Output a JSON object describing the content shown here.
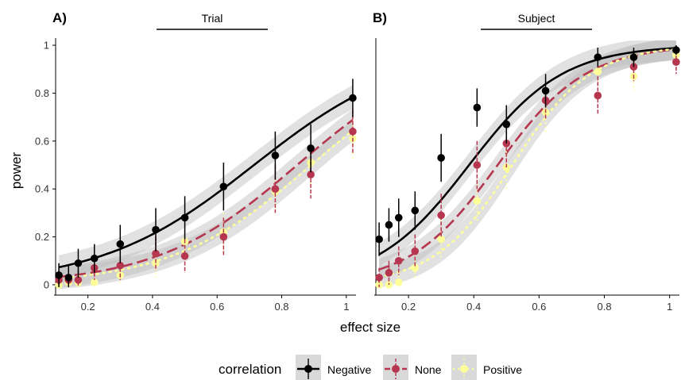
{
  "figure": {
    "ylabel": "power",
    "xlabel": "effect size",
    "legend_title": "correlation",
    "legend": [
      {
        "label": "Negative",
        "color": "#000000",
        "line": "solid"
      },
      {
        "label": "None",
        "color": "#b5364e",
        "line": "dashed"
      },
      {
        "label": "Positive",
        "color": "#ffff99",
        "line": "dotted"
      }
    ]
  },
  "chart_data": [
    {
      "type": "scatter",
      "panel_label": "A)",
      "facet": "Trial",
      "xlabel": "effect size",
      "ylabel": "power",
      "xlim": [
        0.1,
        1.03
      ],
      "ylim": [
        -0.03,
        1.03
      ],
      "xticks": [
        0.2,
        0.4,
        0.6,
        0.8,
        1.0
      ],
      "xtick_labels": [
        "0.2",
        "0.4",
        "0.6",
        "0.8",
        "1"
      ],
      "yticks": [
        0,
        0.2,
        0.4,
        0.6,
        0.8,
        1.0
      ],
      "ytick_labels": [
        "0",
        "0.2",
        "0.4",
        "0.6",
        "0.8",
        "1"
      ],
      "legend_title": "correlation",
      "series": [
        {
          "name": "Negative",
          "color": "#000000",
          "x": [
            0.11,
            0.14,
            0.17,
            0.22,
            0.3,
            0.41,
            0.5,
            0.62,
            0.78,
            0.89,
            1.02
          ],
          "y": [
            0.04,
            0.03,
            0.09,
            0.11,
            0.17,
            0.23,
            0.28,
            0.41,
            0.54,
            0.57,
            0.78
          ],
          "err": [
            0.05,
            0.05,
            0.06,
            0.06,
            0.08,
            0.09,
            0.09,
            0.1,
            0.1,
            0.1,
            0.08
          ],
          "fit": {
            "a": -3.0,
            "b": 4.2
          }
        },
        {
          "name": "None",
          "color": "#b5364e",
          "x": [
            0.11,
            0.14,
            0.17,
            0.22,
            0.3,
            0.41,
            0.5,
            0.62,
            0.78,
            0.89,
            1.02
          ],
          "y": [
            0.02,
            0.02,
            0.02,
            0.07,
            0.08,
            0.13,
            0.12,
            0.2,
            0.4,
            0.46,
            0.64
          ],
          "err": [
            0.04,
            0.04,
            0.04,
            0.05,
            0.06,
            0.07,
            0.07,
            0.08,
            0.1,
            0.1,
            0.09
          ],
          "fit": {
            "a": -3.9,
            "b": 4.6
          }
        },
        {
          "name": "Positive",
          "color": "#ffff99",
          "x": [
            0.11,
            0.14,
            0.17,
            0.22,
            0.3,
            0.41,
            0.5,
            0.62,
            0.78,
            0.89,
            1.02
          ],
          "y": [
            0.0,
            0.01,
            0.01,
            0.01,
            0.04,
            0.09,
            0.18,
            0.22,
            0.39,
            0.51,
            0.61
          ],
          "err": [
            0.02,
            0.02,
            0.02,
            0.03,
            0.04,
            0.06,
            0.07,
            0.08,
            0.1,
            0.1,
            0.09
          ],
          "fit": {
            "a": -4.1,
            "b": 4.6
          }
        }
      ]
    },
    {
      "type": "scatter",
      "panel_label": "B)",
      "facet": "Subject",
      "xlabel": "effect size",
      "ylabel": "power",
      "xlim": [
        0.1,
        1.03
      ],
      "ylim": [
        -0.03,
        1.03
      ],
      "xticks": [
        0.2,
        0.4,
        0.6,
        0.8,
        1.0
      ],
      "xtick_labels": [
        "0.2",
        "0.4",
        "0.6",
        "0.8",
        "1"
      ],
      "legend_title": "correlation",
      "series": [
        {
          "name": "Negative",
          "color": "#000000",
          "x": [
            0.11,
            0.14,
            0.17,
            0.22,
            0.3,
            0.41,
            0.5,
            0.62,
            0.78,
            0.89,
            1.02
          ],
          "y": [
            0.19,
            0.25,
            0.28,
            0.31,
            0.53,
            0.74,
            0.67,
            0.81,
            0.95,
            0.95,
            0.98
          ],
          "err": [
            0.07,
            0.07,
            0.08,
            0.08,
            0.1,
            0.08,
            0.08,
            0.07,
            0.04,
            0.04,
            0.02
          ],
          "fit": {
            "a": -2.7,
            "b": 7.0
          }
        },
        {
          "name": "None",
          "color": "#b5364e",
          "x": [
            0.11,
            0.14,
            0.17,
            0.22,
            0.3,
            0.41,
            0.5,
            0.62,
            0.78,
            0.89,
            1.02
          ],
          "y": [
            0.03,
            0.05,
            0.1,
            0.14,
            0.29,
            0.5,
            0.59,
            0.77,
            0.79,
            0.91,
            0.93
          ],
          "err": [
            0.04,
            0.05,
            0.06,
            0.07,
            0.09,
            0.1,
            0.1,
            0.08,
            0.08,
            0.06,
            0.05
          ],
          "fit": {
            "a": -3.5,
            "b": 7.4
          }
        },
        {
          "name": "Positive",
          "color": "#ffff99",
          "x": [
            0.11,
            0.14,
            0.17,
            0.22,
            0.3,
            0.41,
            0.5,
            0.62,
            0.78,
            0.89,
            1.02
          ],
          "y": [
            0.0,
            0.0,
            0.01,
            0.07,
            0.19,
            0.35,
            0.49,
            0.72,
            0.89,
            0.87,
            0.96
          ],
          "err": [
            0.02,
            0.02,
            0.03,
            0.05,
            0.08,
            0.09,
            0.1,
            0.09,
            0.06,
            0.06,
            0.04
          ],
          "fit": {
            "a": -4.3,
            "b": 8.3
          }
        }
      ]
    }
  ]
}
